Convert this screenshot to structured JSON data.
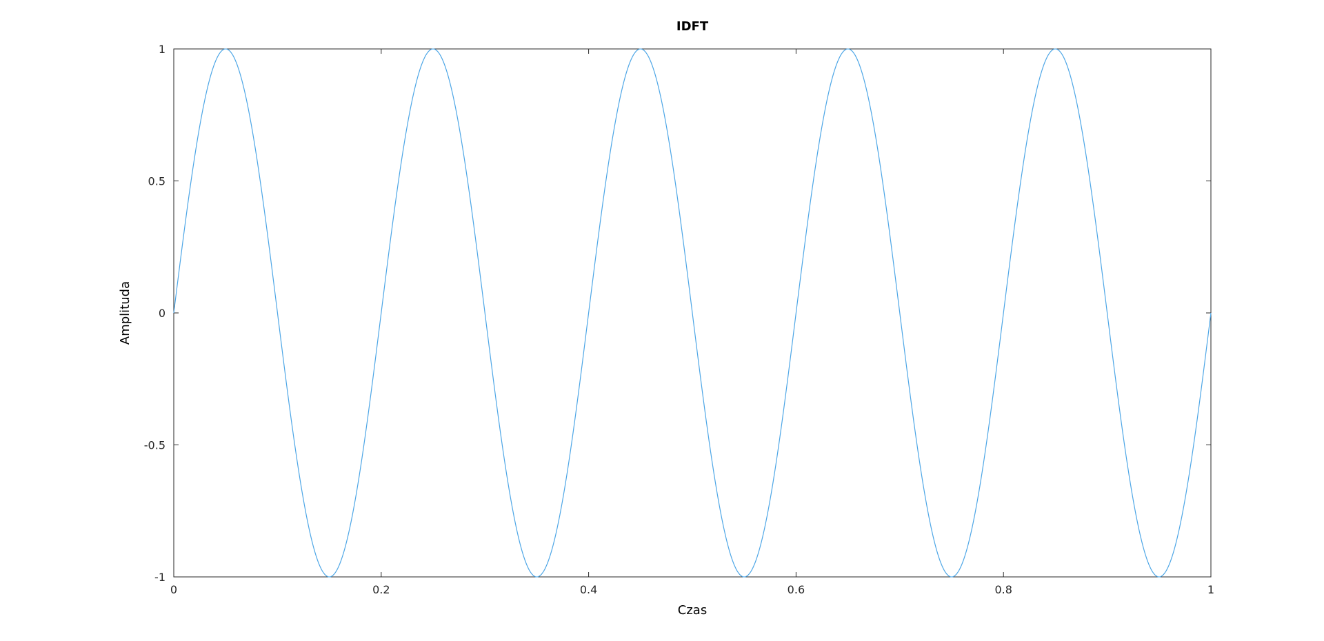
{
  "chart_data": {
    "type": "line",
    "title": "IDFT",
    "xlabel": "Czas",
    "ylabel": "Amplituda",
    "xlim": [
      0,
      1
    ],
    "ylim": [
      -1,
      1
    ],
    "xticks": [
      0,
      0.2,
      0.4,
      0.6,
      0.8,
      1
    ],
    "xtick_labels": [
      "0",
      "0.2",
      "0.4",
      "0.6",
      "0.8",
      "1"
    ],
    "yticks": [
      -1,
      -0.5,
      0,
      0.5,
      1
    ],
    "ytick_labels": [
      "-1",
      "-0.5",
      "0",
      "0.5",
      "1"
    ],
    "grid": false,
    "series": [
      {
        "function": "sin(2*pi*5*t)",
        "frequency": 5,
        "amplitude": 1,
        "color": "#4da6e6",
        "x": [
          0,
          0.05,
          0.15,
          0.25,
          0.35,
          0.45,
          0.55,
          0.65,
          0.75,
          0.85,
          0.95,
          1
        ],
        "values": [
          0,
          1,
          -1,
          1,
          -1,
          1,
          -1,
          1,
          -1,
          1,
          -1,
          0
        ]
      }
    ]
  }
}
